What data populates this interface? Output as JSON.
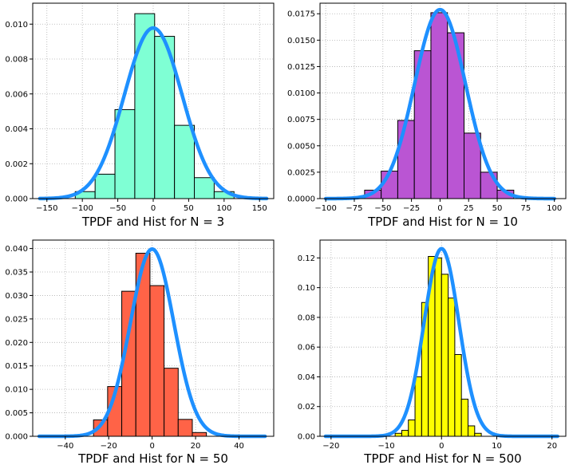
{
  "chart_data": [
    {
      "type": "bar",
      "subtype": "histogram-with-pdf",
      "title": "",
      "xlabel": "TPDF and Hist for N = 3",
      "ylabel": "",
      "xlim": [
        -170,
        170
      ],
      "ylim": [
        0,
        0.0112
      ],
      "xticks": [
        -150,
        -100,
        -50,
        0,
        50,
        100,
        150
      ],
      "yticks": [
        0.0,
        0.002,
        0.004,
        0.006,
        0.008,
        0.01
      ],
      "ytick_decimals": 3,
      "bin_edges": [
        -110,
        -82,
        -54,
        -26,
        2,
        30,
        58,
        86,
        114
      ],
      "bar_values": [
        0.0004,
        0.0014,
        0.0051,
        0.0106,
        0.0093,
        0.0042,
        0.0012,
        0.0004
      ],
      "bar_color": "#7fffd4",
      "pdf_mean": 0,
      "pdf_std": 40.8,
      "pdf_range": [
        -160,
        160
      ],
      "grid": true
    },
    {
      "type": "bar",
      "subtype": "histogram-with-pdf",
      "title": "",
      "xlabel": "TPDF and Hist for N = 10",
      "ylabel": "",
      "xlim": [
        -105,
        110
      ],
      "ylim": [
        0,
        0.0185
      ],
      "xticks": [
        -100,
        -75,
        -50,
        -25,
        0,
        25,
        50,
        75,
        100
      ],
      "yticks": [
        0.0,
        0.0025,
        0.005,
        0.0075,
        0.01,
        0.0125,
        0.015,
        0.0175
      ],
      "ytick_decimals": 4,
      "bin_edges": [
        -66,
        -51.5,
        -37,
        -22.5,
        -8,
        6.5,
        21,
        35.5,
        50,
        64.5
      ],
      "bar_values": [
        0.0008,
        0.0026,
        0.0074,
        0.014,
        0.0176,
        0.0157,
        0.0062,
        0.0025,
        0.0008
      ],
      "bar_color": "#ba55d3",
      "pdf_mean": 0,
      "pdf_std": 22.3,
      "pdf_range": [
        -100,
        100
      ],
      "grid": true
    },
    {
      "type": "bar",
      "subtype": "histogram-with-pdf",
      "title": "",
      "xlabel": "TPDF and Hist for N = 50",
      "ylabel": "",
      "xlim": [
        -55,
        56
      ],
      "ylim": [
        0,
        0.0418
      ],
      "xticks": [
        -40,
        -20,
        0,
        20,
        40
      ],
      "yticks": [
        0.0,
        0.005,
        0.01,
        0.015,
        0.02,
        0.025,
        0.03,
        0.035,
        0.04
      ],
      "ytick_decimals": 3,
      "bin_edges": [
        -27,
        -20.5,
        -14,
        -7.5,
        -1,
        5.5,
        12,
        18.5,
        25,
        31.5
      ],
      "bar_values": [
        0.0035,
        0.0106,
        0.0309,
        0.039,
        0.0321,
        0.0145,
        0.0036,
        0.0008,
        0.0
      ],
      "bar_color": "#ff6347",
      "pdf_mean": 0,
      "pdf_std": 10.0,
      "pdf_range": [
        -52,
        52
      ],
      "grid": true
    },
    {
      "type": "bar",
      "subtype": "histogram-with-pdf",
      "title": "",
      "xlabel": "TPDF and Hist for N = 500",
      "ylabel": "",
      "xlim": [
        -22,
        22.5
      ],
      "ylim": [
        0,
        0.132
      ],
      "xticks": [
        -20,
        -10,
        0,
        10,
        20
      ],
      "yticks": [
        0.0,
        0.02,
        0.04,
        0.06,
        0.08,
        0.1,
        0.12
      ],
      "ytick_decimals": 2,
      "bin_edges": [
        -8.4,
        -7.2,
        -6.0,
        -4.8,
        -3.6,
        -2.4,
        -1.2,
        0.0,
        1.2,
        2.4,
        3.6,
        4.8,
        6.0,
        7.2,
        8.4
      ],
      "bar_values": [
        0.002,
        0.004,
        0.011,
        0.04,
        0.09,
        0.121,
        0.12,
        0.109,
        0.093,
        0.055,
        0.025,
        0.007,
        0.002,
        0.0
      ],
      "bar_color": "#ffff00",
      "pdf_mean": 0,
      "pdf_std": 3.16,
      "pdf_range": [
        -21,
        21
      ],
      "grid": true
    }
  ],
  "style": {
    "pdf_line_color": "#1e90ff",
    "bar_edge_color": "#000000",
    "grid_color": "#b0b0b0"
  }
}
